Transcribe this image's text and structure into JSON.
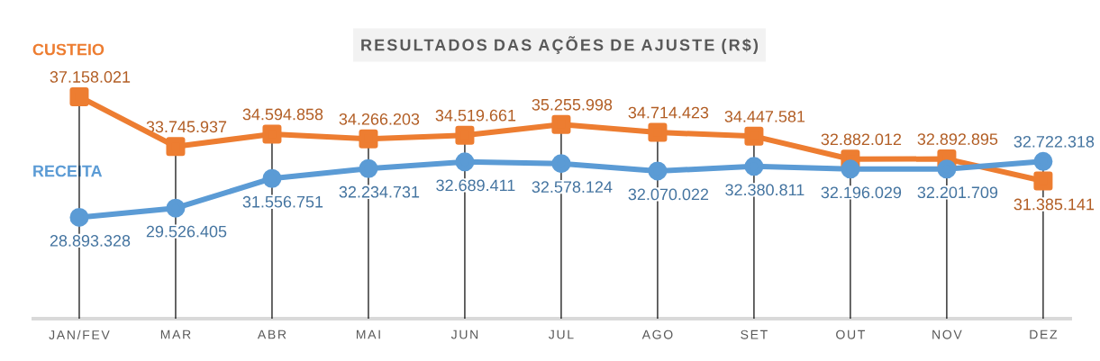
{
  "chart_data": {
    "type": "line",
    "title": "RESULTADOS DAS AÇÕES DE AJUSTE (R$)",
    "categories": [
      "JAN/FEV",
      "MAR",
      "ABR",
      "MAI",
      "JUN",
      "JUL",
      "AGO",
      "SET",
      "OUT",
      "NOV",
      "DEZ"
    ],
    "series": [
      {
        "name": "CUSTEIO",
        "color": "#ed7d31",
        "marker": "square",
        "values": [
          37158021,
          33745937,
          34594858,
          34266203,
          34519661,
          35255998,
          34714423,
          34447581,
          32882012,
          32892895,
          31385141
        ],
        "value_labels": [
          "37.158.021",
          "33.745.937",
          "34.594.858",
          "34.266.203",
          "34.519.661",
          "35.255.998",
          "34.714.423",
          "34.447.581",
          "32.882.012",
          "32.892.895",
          "31.385.141"
        ]
      },
      {
        "name": "RECEITA",
        "color": "#5b9bd5",
        "marker": "circle",
        "values": [
          28893328,
          29526405,
          31556751,
          32234731,
          32689411,
          32578124,
          32070022,
          32380811,
          32196029,
          32201709,
          32722318
        ],
        "value_labels": [
          "28.893.328",
          "29.526.405",
          "31.556.751",
          "32.234.731",
          "32.689.411",
          "32.578.124",
          "32.070.022",
          "32.380.811",
          "32.196.029",
          "32.201.709",
          "32.722.318"
        ]
      }
    ],
    "grid": true
  }
}
